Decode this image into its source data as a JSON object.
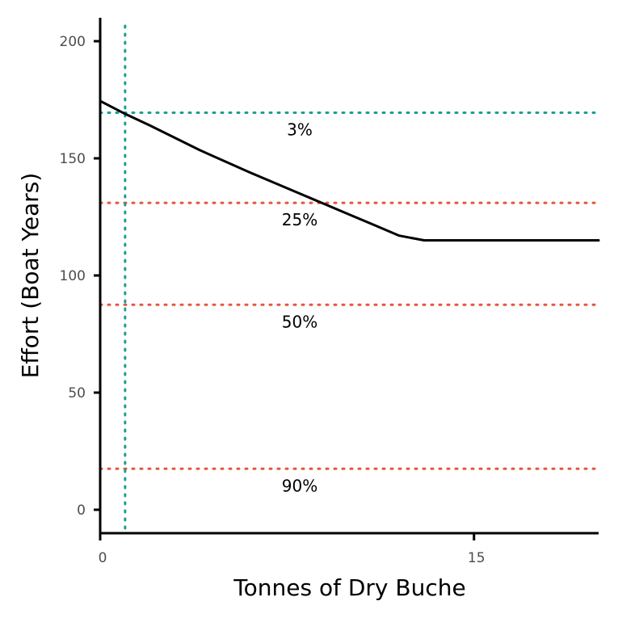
{
  "chart_data": {
    "type": "line",
    "title": "",
    "xlabel": "Tonnes of Dry Buche",
    "ylabel": "Effort (Boat Years)",
    "xlim": [
      0,
      20
    ],
    "ylim": [
      -10,
      210
    ],
    "x_ticks": [
      0,
      15
    ],
    "y_ticks": [
      0,
      50,
      100,
      150,
      200
    ],
    "x_tick_labels": [
      "0",
      "15"
    ],
    "y_tick_labels": [
      "0",
      "50",
      "100",
      "150",
      "200"
    ],
    "grid": false,
    "series": [
      {
        "color": "#000000",
        "x": [
          0,
          1,
          2,
          4,
          6,
          8,
          10,
          11,
          12,
          13,
          14,
          15,
          16,
          18,
          20
        ],
        "y": [
          174.5,
          169,
          164,
          153.5,
          144,
          135,
          126,
          121.5,
          117,
          115,
          115,
          115,
          115,
          115,
          115
        ]
      }
    ],
    "vertical_lines": [
      {
        "x": 1,
        "color": "#1a9e94"
      }
    ],
    "horizontal_lines": [
      {
        "y": 169.5,
        "label": "3%",
        "color": "#1a9e94"
      },
      {
        "y": 131,
        "label": "25%",
        "color": "#e8543f"
      },
      {
        "y": 87.5,
        "label": "50%",
        "color": "#e8543f"
      },
      {
        "y": 17.5,
        "label": "90%",
        "color": "#e8543f"
      }
    ]
  }
}
